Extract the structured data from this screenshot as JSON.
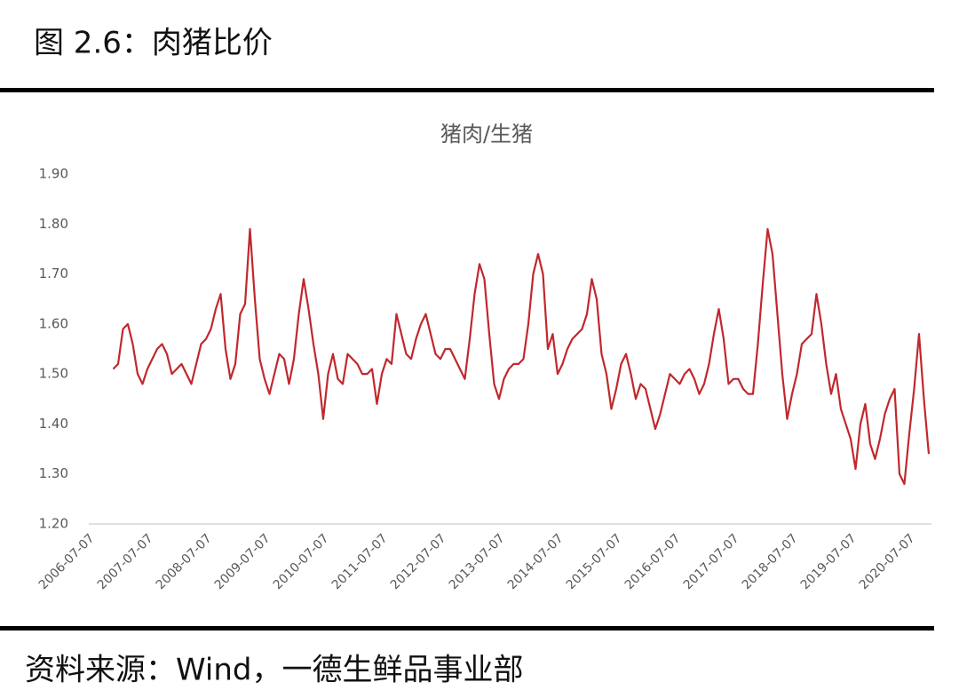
{
  "header": {
    "title": "图 2.6：肉猪比价"
  },
  "chart_data": {
    "type": "line",
    "title": "猪肉/生猪",
    "color": "#c0282d",
    "categories": [
      "2006-07-07",
      null,
      null,
      null,
      null,
      null,
      null,
      null,
      null,
      null,
      null,
      null,
      "2007-07-07",
      null,
      null,
      null,
      null,
      null,
      null,
      null,
      null,
      null,
      null,
      null,
      "2008-07-07",
      null,
      null,
      null,
      null,
      null,
      null,
      null,
      null,
      null,
      null,
      null,
      "2009-07-07",
      null,
      null,
      null,
      null,
      null,
      null,
      null,
      null,
      null,
      null,
      null,
      "2010-07-07",
      null,
      null,
      null,
      null,
      null,
      null,
      null,
      null,
      null,
      null,
      null,
      "2011-07-07",
      null,
      null,
      null,
      null,
      null,
      null,
      null,
      null,
      null,
      null,
      null,
      "2012-07-07",
      null,
      null,
      null,
      null,
      null,
      null,
      null,
      null,
      null,
      null,
      null,
      "2013-07-07",
      null,
      null,
      null,
      null,
      null,
      null,
      null,
      null,
      null,
      null,
      null,
      "2014-07-07",
      null,
      null,
      null,
      null,
      null,
      null,
      null,
      null,
      null,
      null,
      null,
      "2015-07-07",
      null,
      null,
      null,
      null,
      null,
      null,
      null,
      null,
      null,
      null,
      null,
      "2016-07-07",
      null,
      null,
      null,
      null,
      null,
      null,
      null,
      null,
      null,
      null,
      null,
      "2017-07-07",
      null,
      null,
      null,
      null,
      null,
      null,
      null,
      null,
      null,
      null,
      null,
      "2018-07-07",
      null,
      null,
      null,
      null,
      null,
      null,
      null,
      null,
      null,
      null,
      null,
      "2019-07-07",
      null,
      null,
      null,
      null,
      null,
      null,
      null,
      null,
      null,
      null,
      null,
      "2020-07-07",
      null,
      null,
      null,
      null
    ],
    "values": [
      null,
      null,
      null,
      null,
      null,
      1.51,
      1.52,
      1.59,
      1.6,
      1.56,
      1.5,
      1.48,
      1.51,
      1.53,
      1.55,
      1.56,
      1.54,
      1.5,
      1.51,
      1.52,
      1.5,
      1.48,
      1.52,
      1.56,
      1.57,
      1.59,
      1.63,
      1.66,
      1.55,
      1.49,
      1.52,
      1.62,
      1.64,
      1.79,
      1.65,
      1.53,
      1.49,
      1.46,
      1.5,
      1.54,
      1.53,
      1.48,
      1.53,
      1.62,
      1.69,
      1.63,
      1.56,
      1.5,
      1.41,
      1.5,
      1.54,
      1.49,
      1.48,
      1.54,
      1.53,
      1.52,
      1.5,
      1.5,
      1.51,
      1.44,
      1.5,
      1.53,
      1.52,
      1.62,
      1.58,
      1.54,
      1.53,
      1.57,
      1.6,
      1.62,
      1.58,
      1.54,
      1.53,
      1.55,
      1.55,
      1.53,
      1.51,
      1.49,
      1.57,
      1.66,
      1.72,
      1.69,
      1.58,
      1.48,
      1.45,
      1.49,
      1.51,
      1.52,
      1.52,
      1.53,
      1.6,
      1.7,
      1.74,
      1.7,
      1.55,
      1.58,
      1.5,
      1.52,
      1.55,
      1.57,
      1.58,
      1.59,
      1.62,
      1.69,
      1.65,
      1.54,
      1.5,
      1.43,
      1.47,
      1.52,
      1.54,
      1.5,
      1.45,
      1.48,
      1.47,
      1.43,
      1.39,
      1.42,
      1.46,
      1.5,
      1.49,
      1.48,
      1.5,
      1.51,
      1.49,
      1.46,
      1.48,
      1.52,
      1.58,
      1.63,
      1.57,
      1.48,
      1.49,
      1.49,
      1.47,
      1.46,
      1.46,
      1.56,
      1.68,
      1.79,
      1.74,
      1.62,
      1.5,
      1.41,
      1.46,
      1.5,
      1.56,
      1.57,
      1.58,
      1.66,
      1.6,
      1.52,
      1.46,
      1.5,
      1.43,
      1.4,
      1.37,
      1.31,
      1.4,
      1.44,
      1.36,
      1.33,
      1.37,
      1.42,
      1.45,
      1.47,
      1.3,
      1.28,
      1.38,
      1.47,
      1.58,
      1.45,
      1.34
    ],
    "ylim": [
      1.2,
      1.9
    ],
    "yticks": [
      {
        "value": 1.2,
        "label": "1.20"
      },
      {
        "value": 1.3,
        "label": "1.30"
      },
      {
        "value": 1.4,
        "label": "1.40"
      },
      {
        "value": 1.5,
        "label": "1.50"
      },
      {
        "value": 1.6,
        "label": "1.60"
      },
      {
        "value": 1.7,
        "label": "1.70"
      },
      {
        "value": 1.8,
        "label": "1.80"
      },
      {
        "value": 1.9,
        "label": "1.90"
      }
    ],
    "grid": false
  },
  "footer": {
    "source": "资料来源：Wind，一德生鲜品事业部"
  }
}
